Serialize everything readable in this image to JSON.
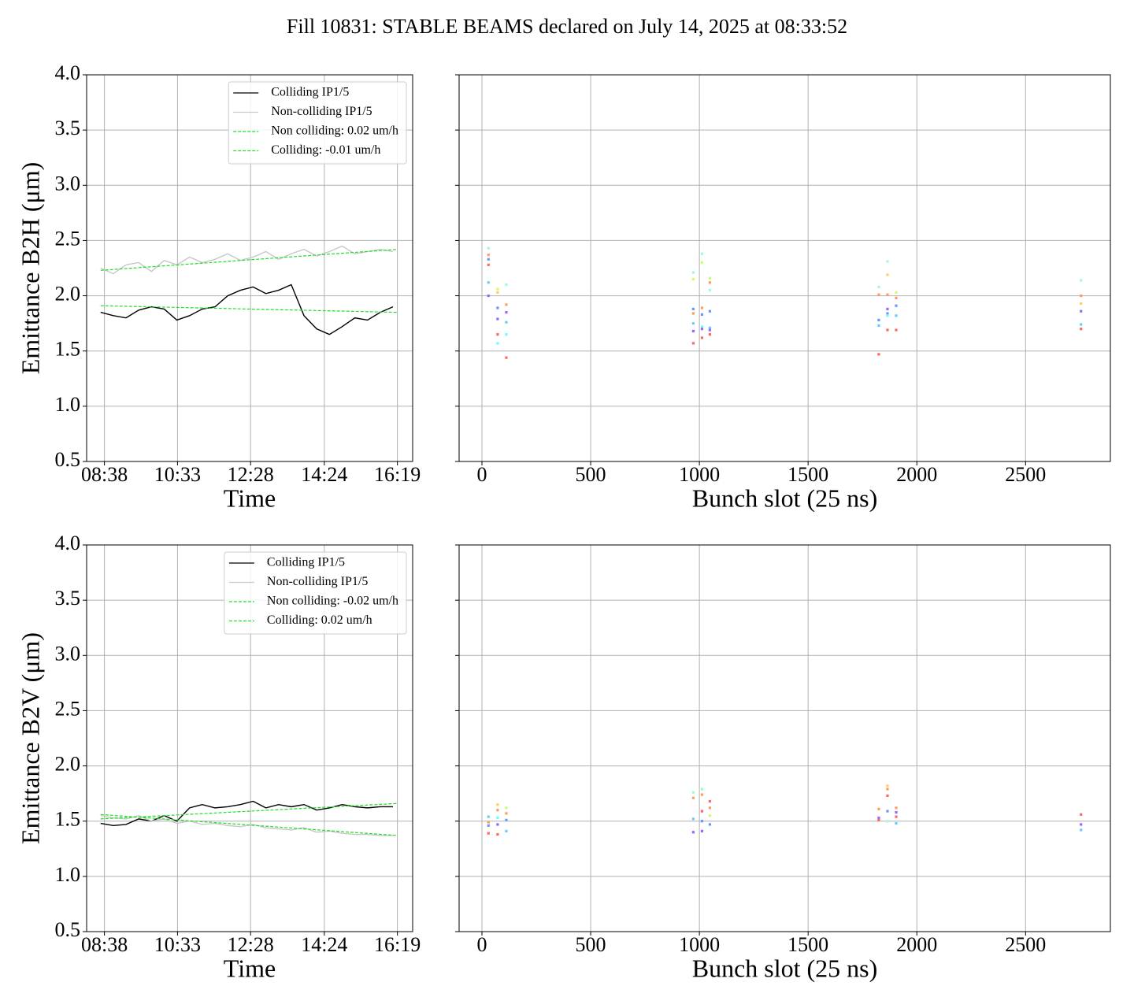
{
  "title": "Fill 10831: STABLE BEAMS declared on July 14, 2025 at 08:33:52",
  "chart_data": [
    {
      "type": "line",
      "xlabel": "Time",
      "ylabel": "Emittance B2H (μm)",
      "xlim": [
        "08:10",
        "16:43"
      ],
      "xticks": [
        "08:38",
        "10:33",
        "12:28",
        "14:24",
        "16:19"
      ],
      "ylim": [
        0.5,
        4.0
      ],
      "yticks": [
        0.5,
        {
          "value": 1,
          "label": "1.0"
        },
        1.5,
        {
          "value": 2,
          "label": "2.0"
        },
        2.5,
        {
          "value": 3,
          "label": "3.0"
        },
        3.5,
        {
          "value": 4,
          "label": "4.0"
        }
      ],
      "grid": true,
      "legend": "upper right",
      "series": [
        {
          "name": "Colliding IP1/5",
          "color": "#000000",
          "linestyle": "solid",
          "x": [
            "08:32",
            "08:52",
            "09:12",
            "09:32",
            "09:52",
            "10:12",
            "10:32",
            "10:52",
            "11:12",
            "11:32",
            "11:52",
            "12:12",
            "12:32",
            "12:52",
            "13:12",
            "13:32",
            "13:52",
            "14:12",
            "14:32",
            "14:52",
            "15:12",
            "15:32",
            "15:52",
            "16:12"
          ],
          "values": [
            1.85,
            1.82,
            1.8,
            1.87,
            1.9,
            1.88,
            1.78,
            1.82,
            1.88,
            1.9,
            2.0,
            2.05,
            2.08,
            2.02,
            2.05,
            2.1,
            1.82,
            1.7,
            1.65,
            1.72,
            1.8,
            1.78,
            1.85,
            1.9
          ]
        },
        {
          "name": "Non-colliding IP1/5",
          "color": "#c8c8c8",
          "linestyle": "solid",
          "x": [
            "08:32",
            "08:52",
            "09:12",
            "09:32",
            "09:52",
            "10:12",
            "10:32",
            "10:52",
            "11:12",
            "11:32",
            "11:52",
            "12:12",
            "12:32",
            "12:52",
            "13:12",
            "13:32",
            "13:52",
            "14:12",
            "14:32",
            "14:52",
            "15:12",
            "15:32",
            "15:52",
            "16:12"
          ],
          "values": [
            2.25,
            2.2,
            2.28,
            2.3,
            2.22,
            2.32,
            2.28,
            2.35,
            2.3,
            2.33,
            2.38,
            2.32,
            2.35,
            2.4,
            2.33,
            2.38,
            2.42,
            2.36,
            2.4,
            2.45,
            2.38,
            2.4,
            2.42,
            2.4
          ]
        },
        {
          "name": "Non colliding: 0.02 um/h",
          "color": "#22dd22",
          "linestyle": "dashed",
          "x": [
            "08:32",
            "16:19"
          ],
          "values": [
            2.23,
            2.42
          ]
        },
        {
          "name": "Colliding: -0.01 um/h",
          "color": "#22dd22",
          "linestyle": "dashed",
          "x": [
            "08:32",
            "16:19"
          ],
          "values": [
            1.91,
            1.85
          ]
        }
      ]
    },
    {
      "type": "scatter",
      "xlabel": "Bunch slot (25 ns)",
      "xlim": [
        -105,
        2890
      ],
      "xticks": [
        0,
        500,
        1000,
        1500,
        2000,
        2500
      ],
      "ylim": [
        0.5,
        4.0
      ],
      "yticks": [
        0.5,
        1,
        1.5,
        2,
        2.5,
        3,
        3.5,
        4
      ],
      "ytick_labels": false,
      "grid": true,
      "x": [
        30,
        30,
        30,
        30,
        30,
        30,
        72,
        72,
        72,
        72,
        72,
        72,
        112,
        112,
        112,
        112,
        112,
        112,
        972,
        972,
        972,
        972,
        972,
        972,
        972,
        1012,
        1012,
        1012,
        1012,
        1012,
        1012,
        1012,
        1048,
        1048,
        1048,
        1048,
        1048,
        1048,
        1048,
        1825,
        1825,
        1825,
        1825,
        1825,
        1865,
        1865,
        1865,
        1865,
        1865,
        1865,
        1865,
        1905,
        1905,
        1905,
        1905,
        1905,
        2755,
        2755,
        2755,
        2755,
        2755,
        2755
      ],
      "values": [
        2.43,
        2.37,
        2.33,
        2.28,
        2.12,
        2.0,
        2.06,
        2.03,
        1.89,
        1.79,
        1.65,
        1.57,
        2.1,
        1.92,
        1.85,
        1.76,
        1.65,
        1.44,
        2.21,
        2.15,
        1.88,
        1.84,
        1.75,
        1.68,
        1.57,
        2.38,
        2.3,
        1.89,
        1.83,
        1.72,
        1.7,
        1.62,
        2.16,
        2.12,
        2.05,
        1.86,
        1.71,
        1.69,
        1.65,
        2.08,
        2.01,
        1.78,
        1.73,
        1.47,
        2.31,
        2.19,
        2.01,
        1.88,
        1.84,
        1.82,
        1.69,
        2.03,
        1.98,
        1.91,
        1.82,
        1.69,
        2.14,
        2.0,
        1.93,
        1.86,
        1.74,
        1.7
      ],
      "colors": [
        "#99ffcc",
        "#ff9966",
        "#6699ff",
        "#ff6666",
        "#66ccff",
        "#9966ff",
        "#ccff66",
        "#ffcc66",
        "#6699ff",
        "#9966ff",
        "#ff6666",
        "#66ffff",
        "#99ffcc",
        "#ff9966",
        "#9966ff",
        "#66ccff",
        "#66ffff",
        "#ff6666",
        "#99ffcc",
        "#ccff66",
        "#6699ff",
        "#ff9966",
        "#66ccff",
        "#9966ff",
        "#ff6666",
        "#99ffcc",
        "#ccff66",
        "#ff9966",
        "#6699ff",
        "#66ffff",
        "#9966ff",
        "#ff6666",
        "#ccff66",
        "#ff9966",
        "#99ffcc",
        "#6699ff",
        "#66ccff",
        "#9966ff",
        "#ff6666",
        "#99ffcc",
        "#ff9966",
        "#6699ff",
        "#66ccff",
        "#ff6666",
        "#99ffcc",
        "#ffcc66",
        "#ff9966",
        "#9966ff",
        "#6699ff",
        "#66ffff",
        "#ff6666",
        "#ccff66",
        "#ff9966",
        "#6699ff",
        "#66ccff",
        "#ff6666",
        "#99ffcc",
        "#ff9966",
        "#ffcc66",
        "#9966ff",
        "#66ccff",
        "#ff6666"
      ]
    },
    {
      "type": "line",
      "xlabel": "Time",
      "ylabel": "Emittance B2V (μm)",
      "xlim": [
        "08:10",
        "16:43"
      ],
      "xticks": [
        "08:38",
        "10:33",
        "12:28",
        "14:24",
        "16:19"
      ],
      "ylim": [
        0.5,
        4.0
      ],
      "yticks": [
        0.5,
        {
          "value": 1,
          "label": "1.0"
        },
        1.5,
        {
          "value": 2,
          "label": "2.0"
        },
        2.5,
        {
          "value": 3,
          "label": "3.0"
        },
        3.5,
        {
          "value": 4,
          "label": "4.0"
        }
      ],
      "grid": true,
      "legend": "upper right",
      "series": [
        {
          "name": "Colliding IP1/5",
          "color": "#000000",
          "linestyle": "solid",
          "x": [
            "08:32",
            "08:52",
            "09:12",
            "09:32",
            "09:52",
            "10:12",
            "10:32",
            "10:52",
            "11:12",
            "11:32",
            "11:52",
            "12:12",
            "12:32",
            "12:52",
            "13:12",
            "13:32",
            "13:52",
            "14:12",
            "14:32",
            "14:52",
            "15:12",
            "15:32",
            "15:52",
            "16:12"
          ],
          "values": [
            1.48,
            1.46,
            1.47,
            1.52,
            1.5,
            1.55,
            1.5,
            1.62,
            1.65,
            1.62,
            1.63,
            1.65,
            1.68,
            1.62,
            1.65,
            1.63,
            1.65,
            1.6,
            1.62,
            1.65,
            1.63,
            1.62,
            1.63,
            1.63
          ]
        },
        {
          "name": "Non-colliding IP1/5",
          "color": "#c8c8c8",
          "linestyle": "solid",
          "x": [
            "08:32",
            "08:52",
            "09:12",
            "09:32",
            "09:52",
            "10:12",
            "10:32",
            "10:52",
            "11:12",
            "11:32",
            "11:52",
            "12:12",
            "12:32",
            "12:52",
            "13:12",
            "13:32",
            "13:52",
            "14:12",
            "14:32",
            "14:52",
            "15:12",
            "15:32",
            "15:52",
            "16:12"
          ],
          "values": [
            1.55,
            1.53,
            1.52,
            1.55,
            1.5,
            1.52,
            1.48,
            1.5,
            1.47,
            1.48,
            1.46,
            1.45,
            1.47,
            1.44,
            1.43,
            1.42,
            1.44,
            1.4,
            1.41,
            1.39,
            1.38,
            1.38,
            1.37,
            1.37
          ]
        },
        {
          "name": "Non colliding: -0.02 um/h",
          "color": "#22dd22",
          "linestyle": "dashed",
          "x": [
            "08:32",
            "16:19"
          ],
          "values": [
            1.56,
            1.37
          ]
        },
        {
          "name": "Colliding: 0.02 um/h",
          "color": "#22dd22",
          "linestyle": "dashed",
          "x": [
            "08:32",
            "16:19"
          ],
          "values": [
            1.52,
            1.66
          ]
        }
      ]
    },
    {
      "type": "scatter",
      "xlabel": "Bunch slot (25 ns)",
      "xlim": [
        -105,
        2890
      ],
      "xticks": [
        0,
        500,
        1000,
        1500,
        2000,
        2500
      ],
      "ylim": [
        0.5,
        4.0
      ],
      "yticks": [
        0.5,
        1,
        1.5,
        2,
        2.5,
        3,
        3.5,
        4
      ],
      "ytick_labels": false,
      "grid": true,
      "x": [
        30,
        30,
        30,
        30,
        72,
        72,
        72,
        72,
        72,
        112,
        112,
        112,
        112,
        972,
        972,
        972,
        972,
        1012,
        1012,
        1012,
        1012,
        1012,
        1048,
        1048,
        1048,
        1048,
        1825,
        1825,
        1825,
        1865,
        1865,
        1865,
        1865,
        1865,
        1905,
        1905,
        1905,
        1905,
        2755,
        2755,
        2755
      ],
      "values": [
        1.54,
        1.49,
        1.46,
        1.39,
        1.65,
        1.6,
        1.53,
        1.47,
        1.38,
        1.62,
        1.57,
        1.51,
        1.41,
        1.76,
        1.71,
        1.52,
        1.4,
        1.79,
        1.74,
        1.59,
        1.5,
        1.41,
        1.68,
        1.62,
        1.55,
        1.47,
        1.61,
        1.53,
        1.51,
        1.82,
        1.79,
        1.73,
        1.59,
        1.5,
        1.62,
        1.58,
        1.54,
        1.48,
        1.56,
        1.47,
        1.42
      ],
      "colors": [
        "#66ccff",
        "#ff9966",
        "#6699ff",
        "#ff6666",
        "#ffcc66",
        "#ff9966",
        "#66ffff",
        "#9966ff",
        "#ff6666",
        "#ccff66",
        "#ff9966",
        "#6699ff",
        "#66ccff",
        "#99ffcc",
        "#ff9966",
        "#66ccff",
        "#9966ff",
        "#99ffcc",
        "#ff9966",
        "#ff6666",
        "#6699ff",
        "#9966ff",
        "#ff6666",
        "#ff9966",
        "#ccff66",
        "#6699ff",
        "#ff9966",
        "#9966ff",
        "#ff6666",
        "#ffcc66",
        "#ff9966",
        "#ff6666",
        "#6699ff",
        "#99ffcc",
        "#ff9966",
        "#9966ff",
        "#ff6666",
        "#66ccff",
        "#ff6666",
        "#9966ff",
        "#66ccff"
      ]
    }
  ]
}
